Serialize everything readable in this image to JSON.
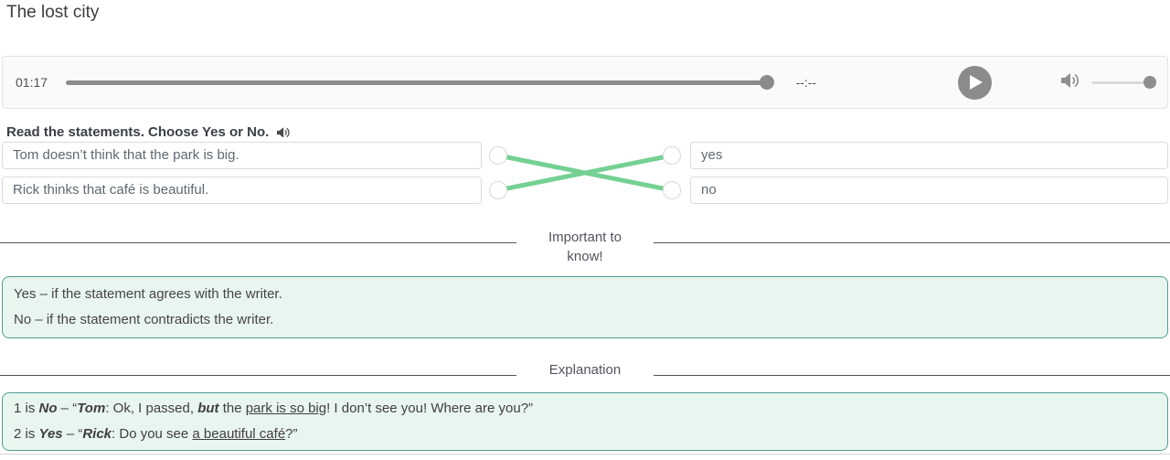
{
  "page": {
    "title": "The lost city"
  },
  "player": {
    "current_time": "01:17",
    "duration": "--:--",
    "progress_percent": 98,
    "volume_percent": 93,
    "play_icon": "play-triangle-icon",
    "volume_icon": "speaker-waves-icon"
  },
  "task": {
    "instruction": "Read the statements. Choose Yes or No.",
    "audio_icon": "speaker-waves-icon",
    "statements": [
      {
        "text": "Tom doesn’t think that the park is big."
      },
      {
        "text": "Rick thinks that café is beautiful."
      }
    ],
    "options": [
      {
        "text": "yes"
      },
      {
        "text": "no"
      }
    ],
    "connections": [
      {
        "from": 0,
        "to": 1
      },
      {
        "from": 1,
        "to": 0
      }
    ],
    "connection_color": "#74d193"
  },
  "important": {
    "heading": "Important to know!",
    "rules": [
      "Yes – if the statement agrees with the writer.",
      "No – if the statement contradicts the writer."
    ]
  },
  "explanation": {
    "heading": "Explanation",
    "lines": [
      [
        {
          "t": "1 is ",
          "s": "plain"
        },
        {
          "t": "No",
          "s": "bi"
        },
        {
          "t": " – “",
          "s": "plain"
        },
        {
          "t": "Tom",
          "s": "bi"
        },
        {
          "t": ": Ok, I passed, ",
          "s": "plain"
        },
        {
          "t": "but",
          "s": "bi"
        },
        {
          "t": " the ",
          "s": "plain"
        },
        {
          "t": "park is so big",
          "s": "u"
        },
        {
          "t": "! I don’t see you! Where are you?”",
          "s": "plain"
        }
      ],
      [
        {
          "t": "2 is ",
          "s": "plain"
        },
        {
          "t": "Yes",
          "s": "bi"
        },
        {
          "t": " – “",
          "s": "plain"
        },
        {
          "t": "Rick",
          "s": "bi"
        },
        {
          "t": ": Do you see ",
          "s": "plain"
        },
        {
          "t": "a beautiful café",
          "s": "u"
        },
        {
          "t": "?”",
          "s": "plain"
        }
      ]
    ]
  },
  "colors": {
    "accent_green_line": "#74d193",
    "info_box_border": "#4f9e95",
    "info_box_bg": "#e9f5ef",
    "player_control_gray": "#8b8b8b"
  }
}
